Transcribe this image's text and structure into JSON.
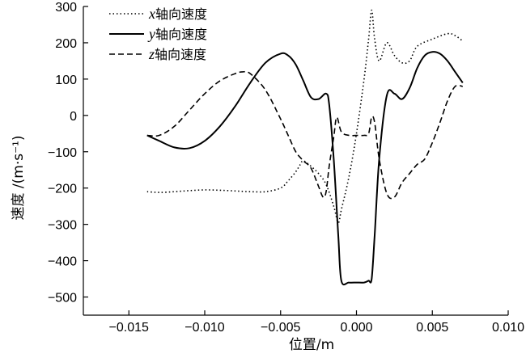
{
  "chart_data": {
    "type": "line",
    "xlabel": "位置/m",
    "ylabel": "速度 /(m·s⁻¹)",
    "xlim": [
      -0.018,
      0.01
    ],
    "ylim": [
      -550,
      300
    ],
    "xticks": [
      -0.015,
      -0.01,
      -0.005,
      0.0,
      0.005,
      0.01
    ],
    "xtick_labels": [
      "−0.015",
      "−0.010",
      "−0.005",
      "0.000",
      "0.005",
      "0.010"
    ],
    "yticks": [
      300,
      200,
      100,
      0,
      -100,
      -200,
      -300,
      -400,
      -500
    ],
    "ytick_labels": [
      "300",
      "200",
      "100",
      "0",
      "−100",
      "−200",
      "−300",
      "−400",
      "−500"
    ],
    "grid": false,
    "legend_position": "top-left",
    "series": [
      {
        "name_var": "x",
        "name_rest": "轴向速度",
        "style": "dotted",
        "x": [
          -0.0138,
          -0.013,
          -0.012,
          -0.011,
          -0.01,
          -0.009,
          -0.008,
          -0.007,
          -0.006,
          -0.005,
          -0.0045,
          -0.004,
          -0.0037,
          -0.0035,
          -0.003,
          -0.0025,
          -0.002,
          -0.0015,
          -0.0012,
          -0.001,
          -0.0005,
          0.0,
          0.0005,
          0.0008,
          0.001,
          0.0012,
          0.0015,
          0.002,
          0.0025,
          0.003,
          0.0035,
          0.004,
          0.005,
          0.006,
          0.0065,
          0.007
        ],
        "y": [
          -210,
          -212,
          -210,
          -207,
          -205,
          -206,
          -208,
          -210,
          -210,
          -200,
          -180,
          -155,
          -135,
          -125,
          -140,
          -160,
          -190,
          -250,
          -295,
          -260,
          -170,
          -50,
          100,
          210,
          290,
          210,
          150,
          200,
          165,
          145,
          150,
          190,
          210,
          225,
          220,
          205
        ]
      },
      {
        "name_var": "y",
        "name_rest": "轴向速度",
        "style": "solid",
        "x": [
          -0.0138,
          -0.013,
          -0.012,
          -0.011,
          -0.01,
          -0.009,
          -0.008,
          -0.007,
          -0.006,
          -0.005,
          -0.0045,
          -0.004,
          -0.0035,
          -0.003,
          -0.0025,
          -0.002,
          -0.0018,
          -0.0015,
          -0.0012,
          -0.001,
          -0.0005,
          0.0,
          0.0005,
          0.0008,
          0.001,
          0.0012,
          0.0015,
          0.002,
          0.0025,
          0.003,
          0.0035,
          0.004,
          0.0045,
          0.005,
          0.0055,
          0.006,
          0.0065,
          0.007
        ],
        "y": [
          -55,
          -70,
          -88,
          -90,
          -70,
          -30,
          25,
          90,
          145,
          170,
          165,
          140,
          95,
          50,
          45,
          60,
          30,
          -120,
          -330,
          -455,
          -460,
          -460,
          -460,
          -455,
          -450,
          -330,
          -120,
          55,
          60,
          45,
          75,
          130,
          165,
          175,
          170,
          150,
          120,
          90
        ]
      },
      {
        "name_var": "z",
        "name_rest": "轴向速度",
        "style": "dashed",
        "x": [
          -0.0138,
          -0.013,
          -0.012,
          -0.011,
          -0.01,
          -0.009,
          -0.008,
          -0.0075,
          -0.007,
          -0.006,
          -0.005,
          -0.0045,
          -0.004,
          -0.0035,
          -0.003,
          -0.0025,
          -0.0022,
          -0.002,
          -0.0018,
          -0.0015,
          -0.0013,
          -0.001,
          -0.0005,
          0.0,
          0.0005,
          0.0008,
          0.001,
          0.0012,
          0.0015,
          0.002,
          0.0025,
          0.003,
          0.0035,
          0.004,
          0.0045,
          0.005,
          0.0055,
          0.006,
          0.0065,
          0.007
        ],
        "y": [
          -55,
          -55,
          -30,
          15,
          60,
          95,
          115,
          120,
          115,
          70,
          -10,
          -55,
          -100,
          -125,
          -145,
          -195,
          -225,
          -210,
          -140,
          -60,
          -5,
          -45,
          -55,
          -55,
          -55,
          -50,
          -5,
          -20,
          -120,
          -215,
          -225,
          -185,
          -160,
          -135,
          -120,
          -75,
          -20,
          40,
          80,
          80
        ]
      }
    ]
  }
}
